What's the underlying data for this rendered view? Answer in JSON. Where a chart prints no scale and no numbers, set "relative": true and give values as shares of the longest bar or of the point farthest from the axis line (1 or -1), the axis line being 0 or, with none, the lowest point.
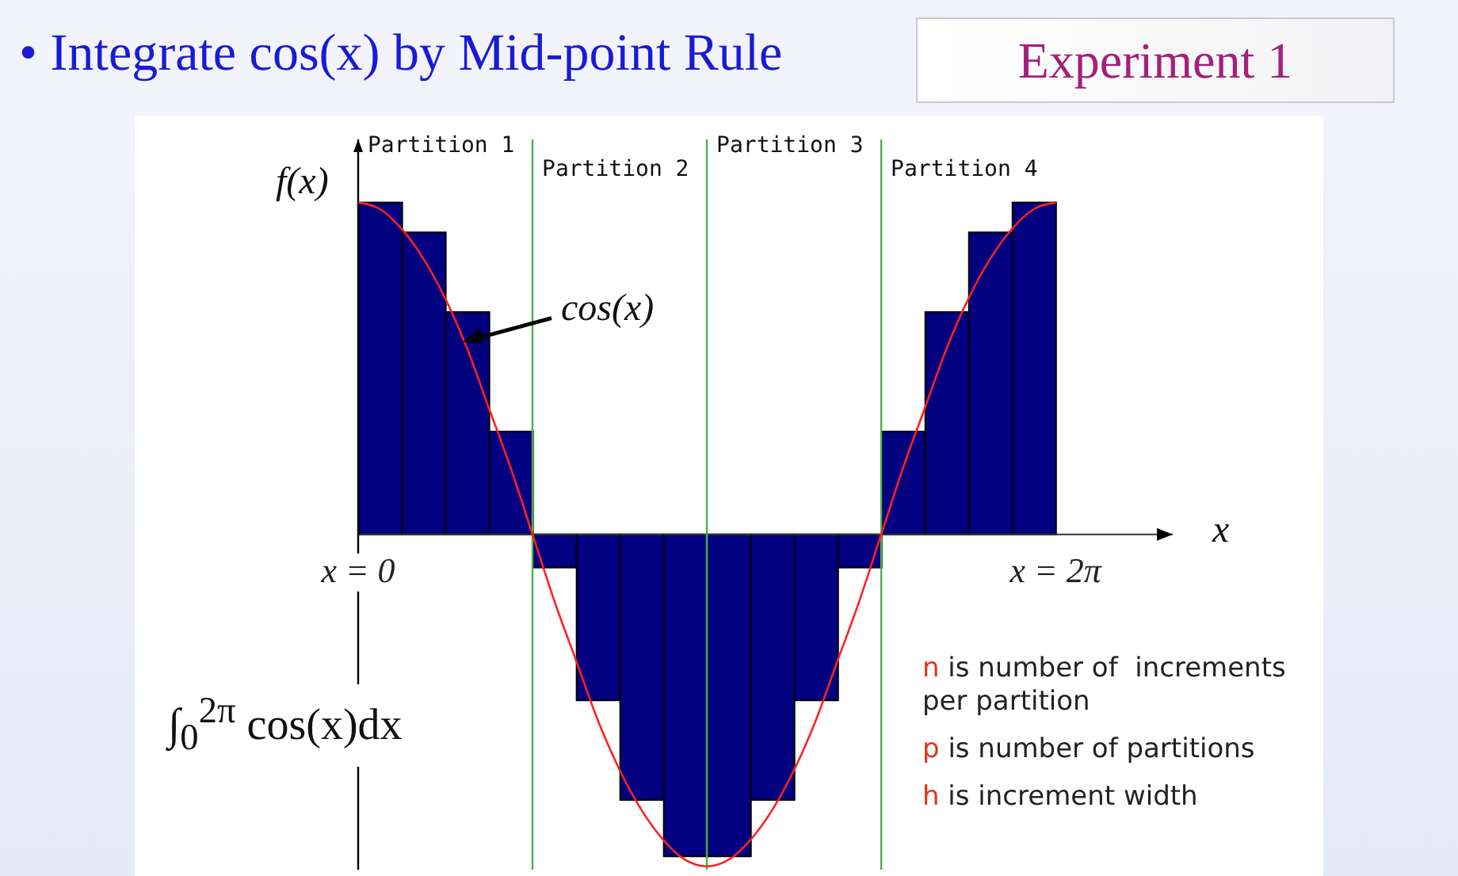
{
  "chart_data": {
    "type": "bar",
    "title": "• Integrate cos(x) by Mid-point Rule",
    "subtitle": "Experiment 1",
    "xlabel": "x",
    "ylabel": "f(x)",
    "relative": true,
    "xlim": [
      0,
      2.336
    ],
    "xticks": [
      {
        "value": 0,
        "label": "x = 0"
      },
      {
        "value": 2,
        "label": "x = 2π"
      }
    ],
    "series": [
      {
        "color": "#000080",
        "x": [
          0.0625,
          0.1875,
          0.3125,
          0.4375,
          0.5625,
          0.6875,
          0.8125,
          0.9375,
          1.0625,
          1.1875,
          1.3125,
          1.4375,
          1.5625,
          1.6875,
          1.8125,
          1.9375
        ],
        "values": [
          1.0,
          0.91,
          0.67,
          0.31,
          -0.1,
          -0.5,
          -0.8,
          -0.97,
          -0.97,
          -0.8,
          -0.5,
          -0.1,
          0.31,
          0.67,
          0.91,
          1.0
        ]
      },
      {
        "type": "line",
        "color": "#ff2020",
        "x": [
          0,
          0.0625,
          0.125,
          0.1875,
          0.25,
          0.3125,
          0.375,
          0.4375,
          0.5,
          0.5625,
          0.625,
          0.6875,
          0.75,
          0.8125,
          0.875,
          0.9375,
          1,
          1.0625,
          1.125,
          1.1875,
          1.25,
          1.3125,
          1.375,
          1.4375,
          1.5,
          1.5625,
          1.625,
          1.6875,
          1.75,
          1.8125,
          1.875,
          1.9375,
          2
        ],
        "values": [
          1,
          0.98,
          0.92,
          0.83,
          0.71,
          0.56,
          0.38,
          0.2,
          0,
          -0.2,
          -0.38,
          -0.56,
          -0.71,
          -0.83,
          -0.92,
          -0.98,
          -1,
          -0.98,
          -0.92,
          -0.83,
          -0.71,
          -0.56,
          -0.38,
          -0.2,
          0,
          0.2,
          0.38,
          0.56,
          0.71,
          0.83,
          0.92,
          0.98,
          1
        ]
      }
    ],
    "ref_lines": [
      {
        "axis": "x",
        "value": 0,
        "label": "Partition 1",
        "color": "#000000"
      },
      {
        "axis": "x",
        "value": 0.5,
        "label": "Partition 2",
        "color": "#4caf50"
      },
      {
        "axis": "x",
        "value": 1,
        "label": "Partition 3",
        "color": "#4caf50"
      },
      {
        "axis": "x",
        "value": 1.5,
        "label": "Partition 4",
        "color": "#4caf50"
      }
    ],
    "annotations": [
      {
        "text": "cos(x)",
        "x": 0.3,
        "y": 0.58
      },
      "∫$_{0}$$^{2π}$ cos(x)dx",
      "n is number of  increments per partition",
      "p is number of partitions",
      "h is increment width"
    ]
  }
}
